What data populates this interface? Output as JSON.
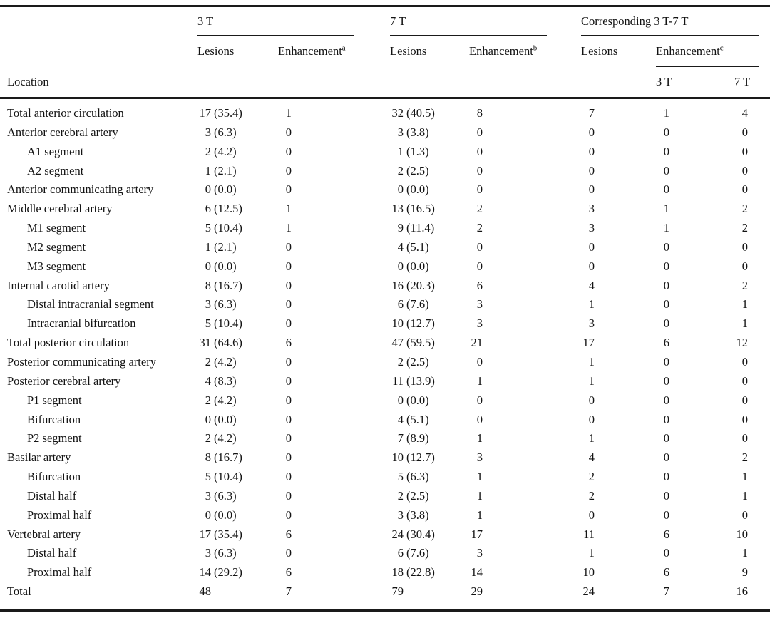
{
  "table": {
    "header": {
      "location_label": "Location",
      "groups": [
        {
          "label": "3 T",
          "lesions_label": "Lesions",
          "enhancement_label": "Enhancement",
          "enhancement_sup": "a"
        },
        {
          "label": "7 T",
          "lesions_label": "Lesions",
          "enhancement_label": "Enhancement",
          "enhancement_sup": "b"
        },
        {
          "label": "Corresponding 3 T-7 T",
          "lesions_label": "Lesions",
          "enhancement_label": "Enhancement",
          "enhancement_sup": "c",
          "enhancement_sub_labels": [
            "3 T",
            "7 T"
          ]
        }
      ]
    },
    "columns": [
      "Location",
      "3 T Lesions",
      "3 T Enhancement",
      "7 T Lesions",
      "7 T Enhancement",
      "Corresponding Lesions",
      "Corresponding Enhancement 3 T",
      "Corresponding Enhancement 7 T"
    ],
    "rows": [
      {
        "location": "Total anterior circulation",
        "indent": false,
        "values": [
          "17 (35.4)",
          "1",
          "32 (40.5)",
          "8",
          "7",
          "1",
          "4"
        ]
      },
      {
        "location": "Anterior cerebral artery",
        "indent": false,
        "values": [
          "3 (6.3)",
          "0",
          "3 (3.8)",
          "0",
          "0",
          "0",
          "0"
        ]
      },
      {
        "location": "A1 segment",
        "indent": true,
        "values": [
          "2 (4.2)",
          "0",
          "1 (1.3)",
          "0",
          "0",
          "0",
          "0"
        ]
      },
      {
        "location": "A2 segment",
        "indent": true,
        "values": [
          "1 (2.1)",
          "0",
          "2 (2.5)",
          "0",
          "0",
          "0",
          "0"
        ]
      },
      {
        "location": "Anterior communicating artery",
        "indent": false,
        "values": [
          "0 (0.0)",
          "0",
          "0 (0.0)",
          "0",
          "0",
          "0",
          "0"
        ]
      },
      {
        "location": "Middle cerebral artery",
        "indent": false,
        "values": [
          "6 (12.5)",
          "1",
          "13 (16.5)",
          "2",
          "3",
          "1",
          "2"
        ]
      },
      {
        "location": "M1 segment",
        "indent": true,
        "values": [
          "5 (10.4)",
          "1",
          "9 (11.4)",
          "2",
          "3",
          "1",
          "2"
        ]
      },
      {
        "location": "M2 segment",
        "indent": true,
        "values": [
          "1 (2.1)",
          "0",
          "4 (5.1)",
          "0",
          "0",
          "0",
          "0"
        ]
      },
      {
        "location": "M3 segment",
        "indent": true,
        "values": [
          "0 (0.0)",
          "0",
          "0 (0.0)",
          "0",
          "0",
          "0",
          "0"
        ]
      },
      {
        "location": "Internal carotid artery",
        "indent": false,
        "values": [
          "8 (16.7)",
          "0",
          "16 (20.3)",
          "6",
          "4",
          "0",
          "2"
        ]
      },
      {
        "location": "Distal intracranial segment",
        "indent": true,
        "values": [
          "3 (6.3)",
          "0",
          "6 (7.6)",
          "3",
          "1",
          "0",
          "1"
        ]
      },
      {
        "location": "Intracranial bifurcation",
        "indent": true,
        "values": [
          "5 (10.4)",
          "0",
          "10 (12.7)",
          "3",
          "3",
          "0",
          "1"
        ]
      },
      {
        "location": "Total posterior circulation",
        "indent": false,
        "values": [
          "31 (64.6)",
          "6",
          "47 (59.5)",
          "21",
          "17",
          "6",
          "12"
        ]
      },
      {
        "location": "Posterior communicating artery",
        "indent": false,
        "values": [
          "2 (4.2)",
          "0",
          "2 (2.5)",
          "0",
          "1",
          "0",
          "0"
        ]
      },
      {
        "location": "Posterior cerebral artery",
        "indent": false,
        "values": [
          "4 (8.3)",
          "0",
          "11 (13.9)",
          "1",
          "1",
          "0",
          "0"
        ]
      },
      {
        "location": "P1 segment",
        "indent": true,
        "values": [
          "2 (4.2)",
          "0",
          "0 (0.0)",
          "0",
          "0",
          "0",
          "0"
        ]
      },
      {
        "location": "Bifurcation",
        "indent": true,
        "values": [
          "0 (0.0)",
          "0",
          "4 (5.1)",
          "0",
          "0",
          "0",
          "0"
        ]
      },
      {
        "location": "P2 segment",
        "indent": true,
        "values": [
          "2 (4.2)",
          "0",
          "7 (8.9)",
          "1",
          "1",
          "0",
          "0"
        ]
      },
      {
        "location": "Basilar artery",
        "indent": false,
        "values": [
          "8 (16.7)",
          "0",
          "10 (12.7)",
          "3",
          "4",
          "0",
          "2"
        ]
      },
      {
        "location": "Bifurcation",
        "indent": true,
        "values": [
          "5 (10.4)",
          "0",
          "5 (6.3)",
          "1",
          "2",
          "0",
          "1"
        ]
      },
      {
        "location": "Distal half",
        "indent": true,
        "values": [
          "3 (6.3)",
          "0",
          "2 (2.5)",
          "1",
          "2",
          "0",
          "1"
        ]
      },
      {
        "location": "Proximal half",
        "indent": true,
        "values": [
          "0 (0.0)",
          "0",
          "3 (3.8)",
          "1",
          "0",
          "0",
          "0"
        ]
      },
      {
        "location": "Vertebral artery",
        "indent": false,
        "values": [
          "17 (35.4)",
          "6",
          "24 (30.4)",
          "17",
          "11",
          "6",
          "10"
        ]
      },
      {
        "location": "Distal half",
        "indent": true,
        "values": [
          "3 (6.3)",
          "0",
          "6 (7.6)",
          "3",
          "1",
          "0",
          "1"
        ]
      },
      {
        "location": "Proximal half",
        "indent": true,
        "values": [
          "14 (29.2)",
          "6",
          "18 (22.8)",
          "14",
          "10",
          "6",
          "9"
        ]
      },
      {
        "location": "Total",
        "indent": false,
        "values": [
          "48",
          "7",
          "79",
          "29",
          "24",
          "7",
          "16"
        ]
      }
    ],
    "colors": {
      "text": "#131313",
      "rule": "#1a1a1a",
      "background": "#ffffff"
    }
  }
}
